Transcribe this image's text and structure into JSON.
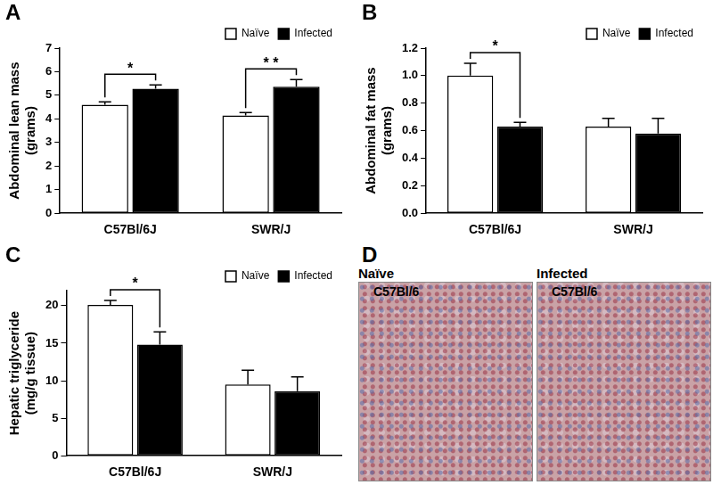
{
  "chart_data": [
    {
      "type": "bar",
      "panel_label": "A",
      "y_label": [
        "Abdominal lean mass",
        "(grams)"
      ],
      "categories": [
        "C57Bl/6J",
        "SWR/J"
      ],
      "series": [
        {
          "name": "Naïve",
          "color": "#ffffff",
          "values": [
            4.6,
            4.15
          ],
          "errors": [
            0.12,
            0.12
          ]
        },
        {
          "name": "Infected",
          "color": "#000000",
          "values": [
            5.28,
            5.37
          ],
          "errors": [
            0.16,
            0.3
          ]
        }
      ],
      "ylim": [
        0,
        7
      ],
      "yticks": [
        0,
        1,
        2,
        3,
        4,
        5,
        6,
        7
      ],
      "grid": false,
      "legend": "top-right",
      "annotations": [
        {
          "category": "C57Bl/6J",
          "text": "*"
        },
        {
          "category": "SWR/J",
          "text": "* *"
        }
      ]
    },
    {
      "type": "bar",
      "panel_label": "B",
      "y_label": [
        "Abdominal fat mass",
        "(grams)"
      ],
      "categories": [
        "C57Bl/6J",
        "SWR/J"
      ],
      "series": [
        {
          "name": "Naïve",
          "color": "#ffffff",
          "values": [
            1.0,
            0.63
          ],
          "errors": [
            0.09,
            0.06
          ]
        },
        {
          "name": "Infected",
          "color": "#000000",
          "values": [
            0.63,
            0.58
          ],
          "errors": [
            0.03,
            0.11
          ]
        }
      ],
      "ylim": [
        0,
        1.2
      ],
      "yticks": [
        {
          "value": 0,
          "label": "0.0"
        },
        0.2,
        0.4,
        0.6,
        0.8,
        {
          "value": 1,
          "label": "1.0"
        },
        1.2
      ],
      "grid": false,
      "legend": "top-right",
      "annotations": [
        {
          "category": "C57Bl/6J",
          "text": "*"
        }
      ]
    },
    {
      "type": "bar",
      "panel_label": "C",
      "y_label": [
        "Hepatic triglyceride",
        "(mg/g tissue)"
      ],
      "categories": [
        "C57Bl/6J",
        "SWR/J"
      ],
      "series": [
        {
          "name": "Naïve",
          "color": "#ffffff",
          "values": [
            20.1,
            9.5
          ],
          "errors": [
            0.6,
            1.9
          ]
        },
        {
          "name": "Infected",
          "color": "#000000",
          "values": [
            14.8,
            8.6
          ],
          "errors": [
            1.7,
            1.9
          ]
        }
      ],
      "ylim": [
        0,
        22
      ],
      "yticks": [
        0,
        5,
        10,
        15,
        20
      ],
      "grid": false,
      "legend": "top-right",
      "annotations": [
        {
          "category": "C57Bl/6J",
          "text": "*"
        }
      ]
    }
  ],
  "image_panel": {
    "panel_label": "D",
    "images": [
      {
        "title": "Naïve",
        "label": "C57Bl/6"
      },
      {
        "title": "Infected",
        "label": "C57Bl/6"
      }
    ]
  }
}
